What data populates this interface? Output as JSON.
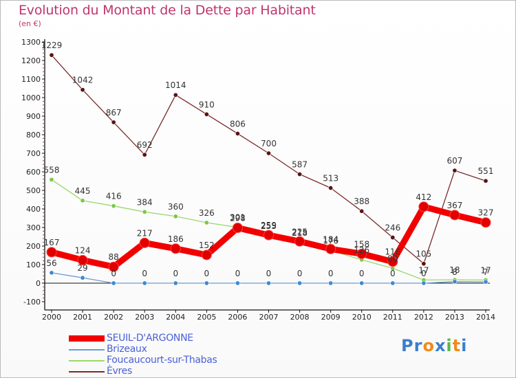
{
  "title": "Evolution du Montant de la Dette par Habitant",
  "subtitle": "(en €)",
  "logo": {
    "letters": [
      "P",
      "r",
      "o",
      "x",
      "i",
      "t",
      "i"
    ],
    "colors": [
      "#3a7fd0",
      "#3a7fd0",
      "#f08a1c",
      "#3a7fd0",
      "#59b848",
      "#f08a1c",
      "#3a7fd0"
    ]
  },
  "chart_data": {
    "type": "line",
    "title": "Evolution du Montant de la Dette par Habitant",
    "ylabel": "(en €)",
    "xlabel": "",
    "categories": [
      "2000",
      "2001",
      "2002",
      "2003",
      "2004",
      "2005",
      "2006",
      "2007",
      "2008",
      "2009",
      "2010",
      "2011",
      "2012",
      "2013",
      "2014"
    ],
    "ylim": [
      -100,
      1300
    ],
    "yticks": [
      "-100",
      "0",
      "100",
      "200",
      "300",
      "400",
      "500",
      "600",
      "700",
      "800",
      "900",
      "1000",
      "1100",
      "1200",
      "1300"
    ],
    "grid": false,
    "legend_position": "bottom-left",
    "series": [
      {
        "name": "SEUIL-D'ARGONNE",
        "color": "#f20000",
        "marker": "#e00000",
        "width": 9,
        "values": [
          167,
          124,
          88,
          217,
          186,
          152,
          298,
          259,
          225,
          184,
          158,
          116,
          412,
          367,
          327
        ],
        "labels": [
          "167",
          "124",
          "88",
          "217",
          "186",
          "152",
          "298",
          "259",
          "225",
          "184",
          "158",
          "116",
          "412",
          "367",
          "327"
        ]
      },
      {
        "name": "Brizeaux",
        "color": "#6b9bd1",
        "marker": "#3d8ad0",
        "width": 1.3,
        "values": [
          56,
          29,
          0,
          0,
          0,
          0,
          0,
          0,
          0,
          0,
          0,
          0,
          0,
          8,
          7
        ],
        "labels": [
          "56",
          "29",
          "0",
          "0",
          "0",
          "0",
          "0",
          "0",
          "0",
          "0",
          "0",
          "0",
          "0",
          "8",
          "7"
        ]
      },
      {
        "name": "Foucaucourt-sur-Thabas",
        "color": "#9bd86b",
        "marker": "#7cc84a",
        "width": 1.3,
        "values": [
          558,
          445,
          416,
          384,
          360,
          326,
          301,
          255,
          218,
          176,
          126,
          80,
          17,
          18,
          17
        ],
        "labels": [
          "558",
          "445",
          "416",
          "384",
          "360",
          "326",
          "301",
          "255",
          "218",
          "176",
          "126",
          "80",
          "17",
          "18",
          "17"
        ]
      },
      {
        "name": "Èvres",
        "color": "#7a2a2a",
        "marker": "#5a1414",
        "width": 1.3,
        "values": [
          1229,
          1042,
          867,
          692,
          1014,
          910,
          806,
          700,
          587,
          513,
          388,
          246,
          105,
          607,
          551
        ],
        "labels": [
          "1229",
          "1042",
          "867",
          "692",
          "1014",
          "910",
          "806",
          "700",
          "587",
          "513",
          "388",
          "246",
          "105",
          "607",
          "551"
        ]
      }
    ]
  }
}
